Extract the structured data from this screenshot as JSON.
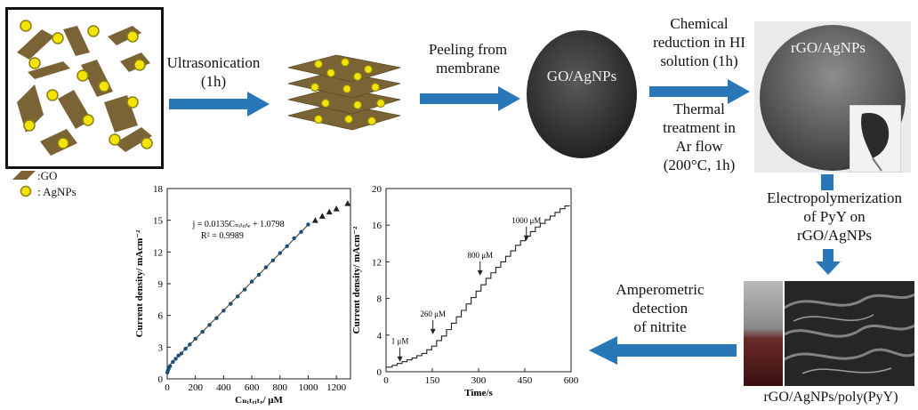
{
  "legend": {
    "go_label": ":GO",
    "agnps_label": ": AgNPs"
  },
  "steps": {
    "ultrasonication": [
      "Ultrasonication",
      "(1h)"
    ],
    "peeling": [
      "Peeling from",
      "membrane"
    ],
    "chemical": [
      "Chemical",
      "reduction in HI",
      "solution (1h)"
    ],
    "thermal": [
      "Thermal",
      "treatment in",
      "Ar flow",
      "(200°C, 1h)"
    ],
    "electropoly": [
      "Electropolymerization",
      "of PyY on",
      "rGO/AgNPs"
    ],
    "amperometric": [
      "Amperometric",
      "detection",
      "of nitrite"
    ]
  },
  "films": {
    "go_agnps": "GO/AgNPs",
    "rgo_agnps": "rGO/AgNPs"
  },
  "final_label": "rGO/AgNPs/poly(PyY)",
  "colors": {
    "go_sheet": "#7a6435",
    "agnp_fill": "#f2e400",
    "agnp_stroke": "#8a7d1a",
    "arrow": "#2a77b8"
  },
  "chart_data": [
    {
      "type": "scatter",
      "ylabel": "Current density/ mAcm⁻²",
      "xlabel": "Cₙᵢₜᵣᵢₜₑ/ μM",
      "xlim": [
        0,
        1300
      ],
      "ylim": [
        0,
        18
      ],
      "xticks": [
        0,
        200,
        400,
        600,
        800,
        1000,
        1200
      ],
      "yticks": [
        0,
        3,
        6,
        9,
        12,
        15,
        18
      ],
      "equation": "j = 0.0135Cₙᵢₜᵣᵢₜₑ + 1.0798",
      "r2": "R² = 0.9989",
      "fit": {
        "slope": 0.0135,
        "intercept": 1.0798,
        "x_range": [
          0,
          1000
        ]
      },
      "series": [
        {
          "marker": "dot",
          "x": [
            1,
            5,
            10,
            20,
            40,
            60,
            80,
            100,
            130,
            160,
            200,
            250,
            300,
            350,
            400,
            450,
            500,
            550,
            600,
            650,
            700,
            750,
            800,
            850,
            900,
            950,
            1000
          ],
          "y": [
            0.6,
            0.8,
            0.95,
            1.2,
            1.6,
            1.9,
            2.2,
            2.4,
            2.85,
            3.25,
            3.8,
            4.45,
            5.1,
            5.75,
            6.45,
            7.1,
            7.8,
            8.45,
            9.2,
            9.85,
            10.55,
            11.2,
            11.9,
            12.55,
            13.3,
            13.9,
            14.6
          ]
        },
        {
          "marker": "triangle",
          "x": [
            1050,
            1100,
            1150,
            1200,
            1280
          ],
          "y": [
            15.0,
            15.4,
            15.8,
            16.1,
            16.6
          ]
        }
      ]
    },
    {
      "type": "line",
      "ylabel": "Current density/ mAcm⁻²",
      "xlabel": "Time/s",
      "xlim": [
        0,
        600
      ],
      "ylim": [
        0,
        20
      ],
      "xticks": [
        0,
        150,
        300,
        450,
        600
      ],
      "yticks": [
        0,
        4,
        8,
        12,
        16,
        20
      ],
      "annotations": [
        {
          "text": "1 μM",
          "x": 45,
          "y": 0.9
        },
        {
          "text": "260 μM",
          "x": 152,
          "y": 3.9
        },
        {
          "text": "800 μM",
          "x": 305,
          "y": 10.3
        },
        {
          "text": "1000 μM",
          "x": 455,
          "y": 14.1
        }
      ],
      "levels": [
        0.5,
        0.7,
        0.9,
        1.1,
        1.3,
        1.5,
        1.75,
        2.0,
        2.4,
        2.8,
        3.4,
        3.9,
        4.6,
        5.3,
        6.0,
        6.7,
        7.4,
        8.1,
        8.8,
        9.5,
        10.2,
        10.8,
        11.4,
        12.0,
        12.6,
        13.2,
        13.8,
        14.3,
        14.8,
        15.3,
        15.8,
        16.2,
        16.6,
        17.0,
        17.4,
        17.8,
        18.1
      ],
      "step_interval": 16
    }
  ]
}
